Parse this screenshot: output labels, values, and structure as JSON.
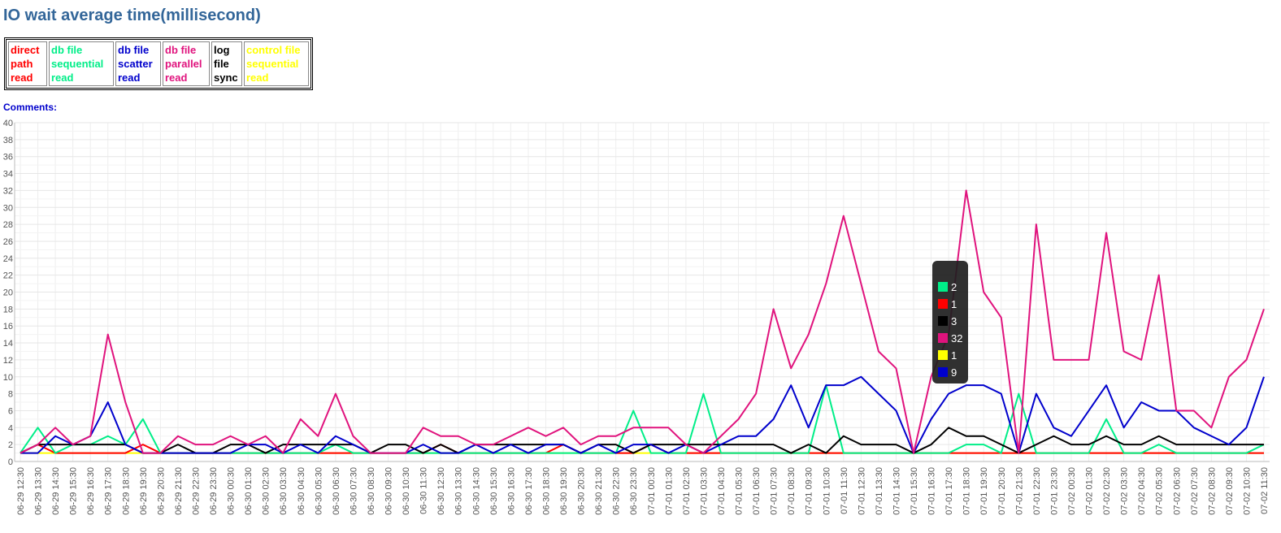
{
  "chart_data": {
    "type": "line",
    "title": "IO wait average time(millisecond)",
    "comments_label": "Comments:",
    "categories": [
      "06-29 12:30",
      "06-29 13:30",
      "06-29 14:30",
      "06-29 15:30",
      "06-29 16:30",
      "06-29 17:30",
      "06-29 18:30",
      "06-29 19:30",
      "06-29 20:30",
      "06-29 21:30",
      "06-29 22:30",
      "06-29 23:30",
      "06-30 00:30",
      "06-30 01:30",
      "06-30 02:30",
      "06-30 03:30",
      "06-30 04:30",
      "06-30 05:30",
      "06-30 06:30",
      "06-30 07:30",
      "06-30 08:30",
      "06-30 09:30",
      "06-30 10:30",
      "06-30 11:30",
      "06-30 12:30",
      "06-30 13:30",
      "06-30 14:30",
      "06-30 15:30",
      "06-30 16:30",
      "06-30 17:30",
      "06-30 18:30",
      "06-30 19:30",
      "06-30 20:30",
      "06-30 21:30",
      "06-30 22:30",
      "06-30 23:30",
      "07-01 00:30",
      "07-01 01:30",
      "07-01 02:30",
      "07-01 03:30",
      "07-01 04:30",
      "07-01 05:30",
      "07-01 06:30",
      "07-01 07:30",
      "07-01 08:30",
      "07-01 09:30",
      "07-01 10:30",
      "07-01 11:30",
      "07-01 12:30",
      "07-01 13:30",
      "07-01 14:30",
      "07-01 15:30",
      "07-01 16:30",
      "07-01 17:30",
      "07-01 18:30",
      "07-01 19:30",
      "07-01 20:30",
      "07-01 21:30",
      "07-01 22:30",
      "07-01 23:30",
      "07-02 00:30",
      "07-02 01:30",
      "07-02 02:30",
      "07-02 03:30",
      "07-02 04:30",
      "07-02 05:30",
      "07-02 06:30",
      "07-02 07:30",
      "07-02 08:30",
      "07-02 09:30",
      "07-02 10:30",
      "07-02 11:30"
    ],
    "series": [
      {
        "name": "direct path read",
        "color": "#ff0000",
        "values": [
          1,
          2,
          1,
          1,
          1,
          1,
          1,
          2,
          1,
          1,
          1,
          1,
          1,
          1,
          1,
          1,
          1,
          1,
          1,
          1,
          1,
          1,
          1,
          1,
          2,
          1,
          1,
          1,
          1,
          1,
          1,
          2,
          1,
          1,
          1,
          1,
          2,
          1,
          1,
          1,
          1,
          1,
          1,
          1,
          1,
          1,
          1,
          1,
          1,
          1,
          1,
          1,
          1,
          1,
          1,
          1,
          1,
          1,
          1,
          1,
          1,
          1,
          1,
          1,
          1,
          1,
          1,
          1,
          1,
          1,
          1,
          1
        ]
      },
      {
        "name": "db file sequential read",
        "color": "#00ee88",
        "values": [
          1,
          4,
          1,
          2,
          2,
          3,
          2,
          5,
          1,
          1,
          1,
          1,
          1,
          1,
          1,
          1,
          1,
          1,
          2,
          1,
          1,
          1,
          1,
          1,
          1,
          1,
          1,
          1,
          1,
          1,
          1,
          1,
          1,
          1,
          1,
          6,
          1,
          1,
          1,
          8,
          1,
          1,
          1,
          1,
          1,
          1,
          9,
          1,
          1,
          1,
          1,
          1,
          1,
          1,
          2,
          2,
          1,
          8,
          1,
          1,
          1,
          1,
          5,
          1,
          1,
          2,
          1,
          1,
          1,
          1,
          1,
          2
        ]
      },
      {
        "name": "db file scatter read",
        "color": "#0000cc",
        "values": [
          1,
          1,
          3,
          2,
          3,
          7,
          2,
          1,
          1,
          1,
          1,
          1,
          1,
          2,
          2,
          1,
          2,
          1,
          3,
          2,
          1,
          1,
          1,
          2,
          1,
          1,
          2,
          1,
          2,
          1,
          2,
          2,
          1,
          2,
          1,
          2,
          2,
          1,
          2,
          1,
          2,
          3,
          3,
          5,
          9,
          4,
          9,
          9,
          10,
          8,
          6,
          1,
          5,
          8,
          9,
          9,
          8,
          1,
          8,
          4,
          3,
          6,
          9,
          4,
          7,
          6,
          6,
          4,
          3,
          2,
          4,
          10
        ]
      },
      {
        "name": "db file parallel read",
        "color": "#e0137d",
        "values": [
          1,
          2,
          4,
          2,
          3,
          15,
          7,
          1,
          1,
          3,
          2,
          2,
          3,
          2,
          3,
          1,
          5,
          3,
          8,
          3,
          1,
          1,
          1,
          4,
          3,
          3,
          2,
          2,
          3,
          4,
          3,
          4,
          2,
          3,
          3,
          4,
          4,
          4,
          2,
          1,
          3,
          5,
          8,
          18,
          11,
          15,
          21,
          29,
          21,
          13,
          11,
          1,
          10,
          15,
          32,
          20,
          17,
          1,
          28,
          12,
          12,
          12,
          27,
          13,
          12,
          22,
          6,
          6,
          4,
          10,
          12,
          18
        ]
      },
      {
        "name": "log file sync",
        "color": "#000000",
        "values": [
          1,
          2,
          2,
          2,
          2,
          2,
          2,
          1,
          1,
          2,
          1,
          1,
          2,
          2,
          1,
          2,
          2,
          2,
          2,
          2,
          1,
          2,
          2,
          1,
          2,
          1,
          2,
          2,
          2,
          2,
          2,
          2,
          1,
          2,
          2,
          1,
          2,
          2,
          2,
          2,
          2,
          2,
          2,
          2,
          1,
          2,
          1,
          3,
          2,
          2,
          2,
          1,
          2,
          4,
          3,
          3,
          2,
          1,
          2,
          3,
          2,
          2,
          3,
          2,
          2,
          3,
          2,
          2,
          2,
          2,
          2,
          2
        ]
      },
      {
        "name": "control file sequential read",
        "color": "#ffff00",
        "values": [
          1,
          1,
          1,
          1,
          1,
          1,
          1,
          1,
          1,
          1,
          1,
          1,
          1,
          1,
          1,
          1,
          1,
          1,
          1,
          1,
          1,
          1,
          1,
          1,
          1,
          1,
          1,
          1,
          1,
          1,
          1,
          1,
          1,
          1,
          1,
          1,
          1,
          1,
          1,
          1,
          1,
          1,
          1,
          1,
          1,
          1,
          1,
          1,
          1,
          1,
          1,
          1,
          1,
          1,
          1,
          1,
          1,
          1,
          1,
          1,
          1,
          1,
          1,
          1,
          1,
          1,
          1,
          1,
          1,
          1,
          1,
          1
        ]
      }
    ],
    "ylim": [
      0,
      40
    ],
    "yticks": [
      0,
      2,
      4,
      6,
      8,
      10,
      12,
      14,
      16,
      18,
      20,
      22,
      24,
      26,
      28,
      30,
      32,
      34,
      36,
      38,
      40
    ],
    "grid": true,
    "tooltip": {
      "entries": [
        {
          "color": "#00ee88",
          "value": 2
        },
        {
          "color": "#ff0000",
          "value": 1
        },
        {
          "color": "#000000",
          "value": 3
        },
        {
          "color": "#e0137d",
          "value": 32
        },
        {
          "color": "#ffff00",
          "value": 1
        },
        {
          "color": "#0000cc",
          "value": 9
        }
      ]
    }
  }
}
